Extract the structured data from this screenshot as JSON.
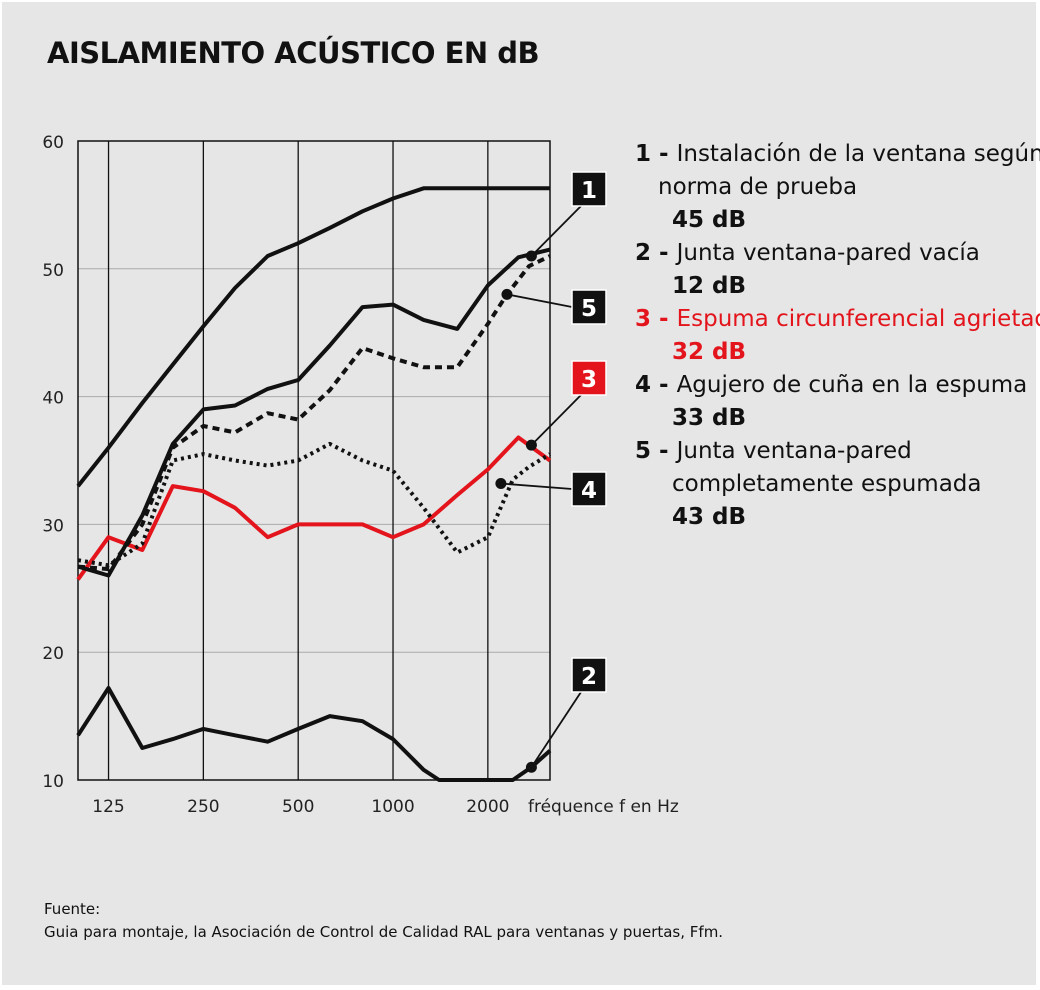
{
  "title": "AISLAMIENTO ACÚSTICO EN dB",
  "colors": {
    "background": "#e6e6e6",
    "black": "#111111",
    "red": "#e3141b",
    "grid": "#aaaaaa"
  },
  "legend": [
    {
      "num": "1",
      "sep": " - ",
      "line1": "Instalación de la ventana según",
      "line2": "norma de prueba",
      "value": "45 dB",
      "color": "#111111"
    },
    {
      "num": "2",
      "sep": " - ",
      "line1": "Junta ventana-pared vacía",
      "line2": "",
      "value": "12 dB",
      "color": "#111111"
    },
    {
      "num": "3",
      "sep": " - ",
      "line1": "Espuma circunferencial agrietada",
      "line2": "",
      "value": "32 dB",
      "color": "#e3141b"
    },
    {
      "num": "4",
      "sep": " - ",
      "line1": "Agujero de cuña en la espuma",
      "line2": "",
      "value": "33 dB",
      "color": "#111111"
    },
    {
      "num": "5",
      "sep": " - ",
      "line1": "Junta ventana-pared",
      "line2": "completamente espumada",
      "value": "43 dB",
      "color": "#111111"
    }
  ],
  "source": {
    "label": "Fuente:",
    "text": "Guia para montaje, la Asociación de Control de Calidad RAL para ventanas y puertas, Ffm."
  },
  "chart_data": {
    "type": "line",
    "title": "AISLAMIENTO ACÚSTICO EN dB",
    "xlabel": "fréquence f en Hz",
    "ylabel": "",
    "x_scale": "log2",
    "x_range_hz": [
      100,
      3150
    ],
    "x_ticks": [
      125,
      250,
      500,
      1000,
      2000
    ],
    "x_tick_labels": [
      "125",
      "250",
      "500",
      "1000",
      "2000"
    ],
    "y_ticks": [
      10,
      20,
      30,
      40,
      50,
      60
    ],
    "ylim": [
      10,
      60
    ],
    "grid": true,
    "legend_position": "right",
    "series": [
      {
        "id": "1",
        "style": "solid",
        "color": "#111111",
        "points": [
          [
            100,
            33
          ],
          [
            125,
            36
          ],
          [
            160,
            39.5
          ],
          [
            200,
            42.5
          ],
          [
            250,
            45.5
          ],
          [
            315,
            48.5
          ],
          [
            400,
            51
          ],
          [
            500,
            52
          ],
          [
            630,
            53.2
          ],
          [
            800,
            54.5
          ],
          [
            1000,
            55.5
          ],
          [
            1250,
            56.3
          ],
          [
            1600,
            56.3
          ],
          [
            2000,
            56.3
          ],
          [
            2500,
            56.3
          ],
          [
            3150,
            56.3
          ]
        ]
      },
      {
        "id": "2",
        "style": "solid",
        "color": "#111111",
        "points": [
          [
            100,
            13.5
          ],
          [
            125,
            17.2
          ],
          [
            160,
            12.5
          ],
          [
            200,
            13.2
          ],
          [
            250,
            14
          ],
          [
            315,
            13.5
          ],
          [
            400,
            13
          ],
          [
            500,
            14
          ],
          [
            630,
            15
          ],
          [
            800,
            14.6
          ],
          [
            1000,
            13.2
          ],
          [
            1250,
            10.8
          ],
          [
            1400,
            10
          ],
          [
            1600,
            10
          ],
          [
            2000,
            10
          ],
          [
            2400,
            10
          ],
          [
            2750,
            11
          ],
          [
            3150,
            12.3
          ]
        ]
      },
      {
        "id": "3",
        "style": "solid",
        "color": "#e3141b",
        "points": [
          [
            100,
            25.7
          ],
          [
            125,
            29
          ],
          [
            160,
            28
          ],
          [
            200,
            33
          ],
          [
            250,
            32.6
          ],
          [
            315,
            31.3
          ],
          [
            400,
            29
          ],
          [
            500,
            30
          ],
          [
            630,
            30
          ],
          [
            800,
            30
          ],
          [
            1000,
            29
          ],
          [
            1250,
            30
          ],
          [
            1600,
            32.3
          ],
          [
            2000,
            34.3
          ],
          [
            2500,
            36.8
          ],
          [
            3150,
            35
          ]
        ]
      },
      {
        "id": "4",
        "style": "dotted",
        "color": "#111111",
        "points": [
          [
            100,
            27.2
          ],
          [
            125,
            26.8
          ],
          [
            160,
            28.5
          ],
          [
            200,
            35
          ],
          [
            250,
            35.5
          ],
          [
            315,
            35
          ],
          [
            400,
            34.6
          ],
          [
            500,
            35
          ],
          [
            630,
            36.3
          ],
          [
            800,
            35
          ],
          [
            1000,
            34.2
          ],
          [
            1250,
            31.3
          ],
          [
            1600,
            27.8
          ],
          [
            2000,
            29
          ],
          [
            2400,
            33.5
          ],
          [
            2700,
            34.5
          ],
          [
            3150,
            35.5
          ]
        ]
      },
      {
        "id": "5",
        "style": "dashed",
        "color": "#111111",
        "points": [
          [
            100,
            26.7
          ],
          [
            125,
            26.5
          ],
          [
            160,
            30
          ],
          [
            200,
            36
          ],
          [
            250,
            37.7
          ],
          [
            315,
            37.2
          ],
          [
            400,
            38.7
          ],
          [
            500,
            38.2
          ],
          [
            630,
            40.5
          ],
          [
            800,
            43.8
          ],
          [
            1000,
            43
          ],
          [
            1250,
            42.3
          ],
          [
            1600,
            42.3
          ],
          [
            2000,
            45.7
          ],
          [
            2300,
            48
          ],
          [
            2700,
            50.2
          ],
          [
            3150,
            51
          ]
        ]
      },
      {
        "id": "1b",
        "style": "solid",
        "color": "#111111",
        "points": [
          [
            100,
            26.7
          ],
          [
            125,
            26
          ],
          [
            160,
            30.7
          ],
          [
            200,
            36.3
          ],
          [
            250,
            39
          ],
          [
            315,
            39.3
          ],
          [
            400,
            40.6
          ],
          [
            500,
            41.3
          ],
          [
            630,
            44
          ],
          [
            800,
            47
          ],
          [
            1000,
            47.2
          ],
          [
            1250,
            46
          ],
          [
            1600,
            45.3
          ],
          [
            2000,
            48.7
          ],
          [
            2500,
            50.9
          ],
          [
            3150,
            51.5
          ]
        ]
      }
    ],
    "callouts": [
      {
        "label": "1",
        "style": "black",
        "target": [
          2750,
          51.0
        ],
        "box_at": [
          2200,
          46
        ]
      },
      {
        "label": "5",
        "style": "black",
        "target": [
          2300,
          48.0
        ],
        "box_at": [
          2200,
          42
        ]
      },
      {
        "label": "3",
        "style": "red",
        "target": [
          2750,
          36.2
        ],
        "box_at": [
          2200,
          38
        ]
      },
      {
        "label": "4",
        "style": "black",
        "target": [
          2200,
          33.2
        ],
        "box_at": [
          2200,
          31.5
        ]
      },
      {
        "label": "2",
        "style": "black",
        "target": [
          2750,
          11.0
        ],
        "box_at": [
          2200,
          17
        ]
      }
    ]
  }
}
